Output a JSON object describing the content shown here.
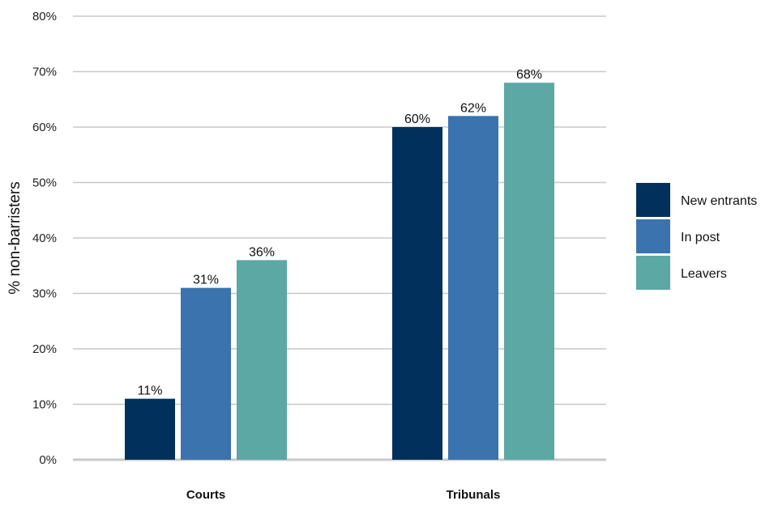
{
  "chart_data": {
    "type": "bar",
    "title": "",
    "xlabel": "",
    "ylabel": "% non-barristers",
    "categories": [
      "Courts",
      "Tribunals"
    ],
    "series": [
      {
        "name": "New entrants",
        "values": [
          11,
          60
        ],
        "labels": [
          "11%",
          "60%"
        ],
        "color": "#00305b"
      },
      {
        "name": "In post",
        "values": [
          31,
          62
        ],
        "labels": [
          "31%",
          "62%"
        ],
        "color": "#3a73ad"
      },
      {
        "name": "Leavers",
        "values": [
          36,
          68
        ],
        "labels": [
          "36%",
          "68%"
        ],
        "color": "#5ba8a5"
      }
    ],
    "ylim": [
      0,
      80
    ],
    "yticks": [
      0,
      10,
      20,
      30,
      40,
      50,
      60,
      70,
      80
    ],
    "ytick_labels": [
      "0%",
      "10%",
      "20%",
      "30%",
      "40%",
      "50%",
      "60%",
      "70%",
      "80%"
    ],
    "grid": true,
    "legend_position": "right"
  }
}
